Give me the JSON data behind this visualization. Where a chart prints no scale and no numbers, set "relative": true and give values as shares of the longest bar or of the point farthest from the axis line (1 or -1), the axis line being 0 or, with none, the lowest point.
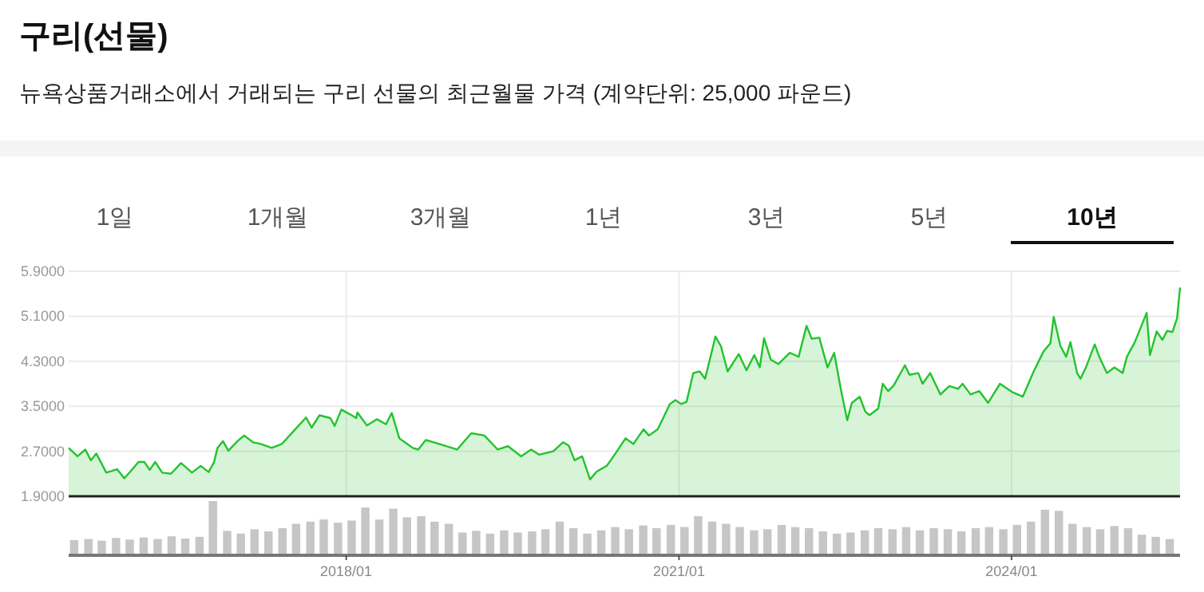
{
  "chart_data": [
    {
      "type": "area",
      "title": "구리(선물)",
      "subtitle": "뉴욕상품거래소에서 거래되는 구리 선물의 최근월물 가격 (계약단위: 25,000 파운드)",
      "annotations": [
        "1일",
        "1개월",
        "3개월",
        "1년",
        "3년",
        "5년",
        "10년"
      ],
      "color": "#22c42c",
      "grid": true,
      "tick_labels": "y",
      "xlim": [
        "2015-07-02",
        "2025-07-09"
      ],
      "ylim": [
        1.9,
        5.9
      ],
      "xticks": [
        {
          "value": "2018-01",
          "label": null
        },
        {
          "value": "2021-01",
          "label": null
        },
        {
          "value": "2024-01",
          "label": null
        }
      ],
      "yticks": [
        {
          "value": 1.9,
          "label": "1.9000"
        },
        {
          "value": 2.7,
          "label": "2.7000"
        },
        {
          "value": 3.5,
          "label": "3.5000"
        },
        {
          "value": 4.3,
          "label": "4.3000"
        },
        {
          "value": 5.1,
          "label": "5.1000"
        },
        {
          "value": 5.9,
          "label": "5.9000"
        }
      ],
      "x": [
        "2015-07-02",
        "2015-07-31",
        "2015-08-26",
        "2015-09-13",
        "2015-10-01",
        "2015-11-03",
        "2015-12-09",
        "2016-01-01",
        "2016-01-23",
        "2016-02-17",
        "2016-03-07",
        "2016-03-25",
        "2016-04-12",
        "2016-05-05",
        "2016-06-03",
        "2016-07-06",
        "2016-08-11",
        "2016-09-09",
        "2016-10-05",
        "2016-10-23",
        "2016-11-03",
        "2016-11-21",
        "2016-12-09",
        "2017-01-08",
        "2017-01-30",
        "2017-02-28",
        "2017-03-25",
        "2017-05-01",
        "2017-06-03",
        "2017-07-17",
        "2017-08-22",
        "2017-09-09",
        "2017-10-05",
        "2017-11-10",
        "2017-11-24",
        "2017-12-16",
        "2018-01-19",
        "2018-02-03",
        "2018-02-07",
        "2018-03-10",
        "2018-04-12",
        "2018-05-12",
        "2018-05-31",
        "2018-06-25",
        "2018-08-08",
        "2018-08-26",
        "2018-09-20",
        "2018-11-03",
        "2019-01-01",
        "2019-02-17",
        "2019-04-01",
        "2019-05-15",
        "2019-06-18",
        "2019-07-31",
        "2019-09-02",
        "2019-09-28",
        "2019-11-14",
        "2019-12-16",
        "2020-01-04",
        "2020-01-23",
        "2020-02-17",
        "2020-03-14",
        "2020-04-05",
        "2020-05-08",
        "2020-06-03",
        "2020-07-09",
        "2020-08-04",
        "2020-09-06",
        "2020-09-24",
        "2020-10-23",
        "2020-12-02",
        "2020-12-20",
        "2021-01-08",
        "2021-01-26",
        "2021-02-17",
        "2021-03-10",
        "2021-03-28",
        "2021-05-01",
        "2021-05-19",
        "2021-06-10",
        "2021-07-17",
        "2021-08-11",
        "2021-09-06",
        "2021-09-24",
        "2021-10-08",
        "2021-10-30",
        "2021-11-24",
        "2022-01-01",
        "2022-01-30",
        "2022-02-25",
        "2022-03-14",
        "2022-04-08",
        "2022-05-05",
        "2022-05-27",
        "2022-06-18",
        "2022-07-09",
        "2022-07-24",
        "2022-08-19",
        "2022-09-06",
        "2022-09-20",
        "2022-10-19",
        "2022-11-03",
        "2022-11-21",
        "2022-12-09",
        "2023-01-15",
        "2023-01-30",
        "2023-02-28",
        "2023-03-14",
        "2023-04-08",
        "2023-05-12",
        "2023-06-10",
        "2023-07-09",
        "2023-07-24",
        "2023-08-19",
        "2023-09-17",
        "2023-10-16",
        "2023-11-24",
        "2024-01-04",
        "2024-02-07",
        "2024-03-14",
        "2024-04-16",
        "2024-05-08",
        "2024-05-19",
        "2024-06-10",
        "2024-06-29",
        "2024-07-13",
        "2024-08-04",
        "2024-08-15",
        "2024-09-02",
        "2024-10-01",
        "2024-10-16",
        "2024-11-10",
        "2024-12-05",
        "2025-01-01",
        "2025-01-15",
        "2025-02-10",
        "2025-03-21",
        "2025-04-01",
        "2025-04-23",
        "2025-05-12",
        "2025-05-27",
        "2025-06-14",
        "2025-06-29",
        "2025-07-09"
      ],
      "values": [
        2.76,
        2.61,
        2.73,
        2.54,
        2.66,
        2.32,
        2.38,
        2.22,
        2.35,
        2.51,
        2.51,
        2.37,
        2.51,
        2.32,
        2.3,
        2.49,
        2.32,
        2.44,
        2.33,
        2.51,
        2.76,
        2.88,
        2.71,
        2.88,
        2.98,
        2.86,
        2.83,
        2.76,
        2.83,
        3.09,
        3.3,
        3.12,
        3.34,
        3.29,
        3.15,
        3.44,
        3.34,
        3.29,
        3.39,
        3.16,
        3.27,
        3.18,
        3.38,
        2.93,
        2.76,
        2.73,
        2.9,
        2.83,
        2.73,
        3.02,
        2.98,
        2.73,
        2.79,
        2.61,
        2.73,
        2.64,
        2.7,
        2.86,
        2.8,
        2.54,
        2.61,
        2.2,
        2.34,
        2.44,
        2.64,
        2.93,
        2.83,
        3.09,
        2.98,
        3.09,
        3.54,
        3.61,
        3.54,
        3.58,
        4.09,
        4.12,
        3.99,
        4.74,
        4.57,
        4.12,
        4.43,
        4.14,
        4.41,
        4.19,
        4.71,
        4.33,
        4.25,
        4.45,
        4.38,
        4.93,
        4.7,
        4.72,
        4.19,
        4.45,
        3.8,
        3.25,
        3.56,
        3.67,
        3.41,
        3.34,
        3.46,
        3.9,
        3.77,
        3.87,
        4.23,
        4.06,
        4.09,
        3.9,
        4.09,
        3.71,
        3.86,
        3.81,
        3.9,
        3.71,
        3.77,
        3.56,
        3.9,
        3.75,
        3.67,
        4.12,
        4.48,
        4.62,
        5.09,
        4.57,
        4.38,
        4.64,
        4.09,
        3.99,
        4.19,
        4.6,
        4.38,
        4.09,
        4.19,
        4.09,
        4.38,
        4.64,
        5.16,
        4.41,
        4.83,
        4.68,
        4.84,
        4.82,
        5.06,
        5.61
      ]
    },
    {
      "type": "bar",
      "relative": true,
      "color": "#c6c6c6",
      "tick_labels": "x",
      "xlim": [
        "2015-07-02",
        "2025-07-09"
      ],
      "xticks": [
        {
          "value": "2018-01",
          "label": "2018/01"
        },
        {
          "value": "2021-01",
          "label": "2021/01"
        },
        {
          "value": "2024-01",
          "label": "2024/01"
        }
      ],
      "x": [
        "2015-07-20",
        "2015-09-05",
        "2015-10-19",
        "2015-12-05",
        "2016-01-19",
        "2016-03-05",
        "2016-04-20",
        "2016-06-05",
        "2016-07-20",
        "2016-09-05",
        "2016-10-19",
        "2016-12-05",
        "2017-01-19",
        "2017-03-05",
        "2017-04-20",
        "2017-06-05",
        "2017-07-20",
        "2017-09-05",
        "2017-10-19",
        "2017-12-05",
        "2018-01-19",
        "2018-03-05",
        "2018-04-20",
        "2018-06-05",
        "2018-07-20",
        "2018-09-05",
        "2018-10-19",
        "2018-12-05",
        "2019-01-19",
        "2019-03-05",
        "2019-04-20",
        "2019-06-05",
        "2019-07-20",
        "2019-09-05",
        "2019-10-19",
        "2019-12-05",
        "2020-01-19",
        "2020-03-05",
        "2020-04-20",
        "2020-06-05",
        "2020-07-20",
        "2020-09-05",
        "2020-10-19",
        "2020-12-05",
        "2021-01-19",
        "2021-03-05",
        "2021-04-20",
        "2021-06-05",
        "2021-07-20",
        "2021-09-05",
        "2021-10-19",
        "2021-12-05",
        "2022-01-19",
        "2022-03-05",
        "2022-04-20",
        "2022-06-05",
        "2022-07-20",
        "2022-09-05",
        "2022-10-19",
        "2022-12-05",
        "2023-01-19",
        "2023-03-05",
        "2023-04-20",
        "2023-06-05",
        "2023-07-20",
        "2023-09-05",
        "2023-10-19",
        "2023-12-05",
        "2024-01-19",
        "2024-03-05",
        "2024-04-20",
        "2024-06-05",
        "2024-07-20",
        "2024-09-05",
        "2024-10-19",
        "2024-12-05",
        "2025-01-19",
        "2025-03-05",
        "2025-04-20",
        "2025-06-05"
      ],
      "values": [
        0.28,
        0.3,
        0.27,
        0.32,
        0.29,
        0.33,
        0.3,
        0.35,
        0.31,
        0.34,
        1.0,
        0.45,
        0.4,
        0.48,
        0.44,
        0.5,
        0.58,
        0.62,
        0.66,
        0.6,
        0.64,
        0.88,
        0.66,
        0.86,
        0.7,
        0.72,
        0.62,
        0.58,
        0.42,
        0.45,
        0.4,
        0.46,
        0.42,
        0.44,
        0.48,
        0.62,
        0.5,
        0.4,
        0.46,
        0.52,
        0.48,
        0.55,
        0.5,
        0.56,
        0.52,
        0.72,
        0.62,
        0.58,
        0.52,
        0.46,
        0.48,
        0.56,
        0.52,
        0.5,
        0.44,
        0.4,
        0.42,
        0.46,
        0.5,
        0.48,
        0.52,
        0.46,
        0.5,
        0.48,
        0.44,
        0.5,
        0.52,
        0.48,
        0.56,
        0.62,
        0.84,
        0.82,
        0.58,
        0.52,
        0.48,
        0.54,
        0.5,
        0.38,
        0.34,
        0.3
      ]
    }
  ]
}
